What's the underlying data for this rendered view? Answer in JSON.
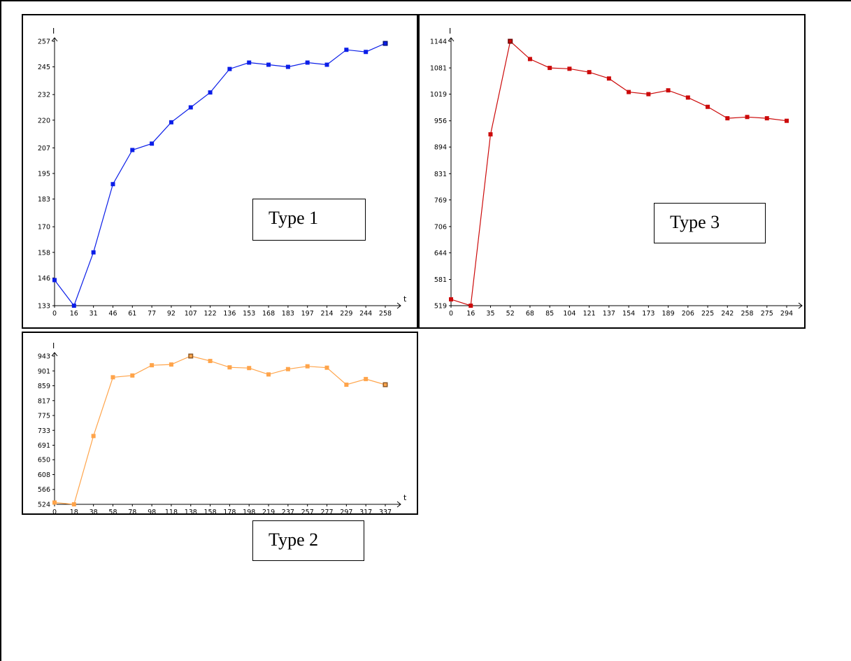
{
  "chart_data": [
    {
      "id": "type1",
      "type": "line",
      "label": "Type 1",
      "xlabel": "t",
      "ylabel": "I",
      "color": "#0b1ee8",
      "yticks": [
        133,
        146,
        158,
        170,
        183,
        195,
        207,
        220,
        232,
        245,
        257
      ],
      "xticks": [
        0,
        16,
        31,
        46,
        61,
        77,
        92,
        107,
        122,
        136,
        153,
        168,
        183,
        197,
        214,
        229,
        244,
        258
      ],
      "ylim": [
        133,
        257
      ],
      "values": [
        145,
        133,
        158,
        190,
        206,
        209,
        219,
        226,
        233,
        244,
        247,
        246,
        245,
        247,
        246,
        253,
        252,
        256
      ],
      "highlight_last": true
    },
    {
      "id": "type3",
      "type": "line",
      "label": "Type 3",
      "xlabel": "t",
      "ylabel": "I",
      "color": "#cc0a0a",
      "yticks": [
        519,
        581,
        644,
        706,
        769,
        831,
        894,
        956,
        1019,
        1081,
        1144
      ],
      "xticks": [
        0,
        16,
        35,
        52,
        68,
        85,
        104,
        121,
        137,
        154,
        173,
        189,
        206,
        225,
        242,
        258,
        275,
        294
      ],
      "ylim": [
        519,
        1144
      ],
      "values": [
        534,
        519,
        924,
        1144,
        1102,
        1081,
        1079,
        1071,
        1056,
        1024,
        1019,
        1028,
        1011,
        989,
        962,
        965,
        962,
        956
      ],
      "highlight_peak": true
    },
    {
      "id": "type2",
      "type": "line",
      "label": "Type 2",
      "xlabel": "t",
      "ylabel": "I",
      "color": "#ffa44a",
      "yticks": [
        524,
        566,
        608,
        650,
        691,
        733,
        775,
        817,
        859,
        901,
        943
      ],
      "xticks": [
        0,
        18,
        38,
        58,
        78,
        98,
        118,
        138,
        158,
        178,
        198,
        219,
        237,
        257,
        277,
        297,
        317,
        337
      ],
      "ylim": [
        524,
        943
      ],
      "values": [
        529,
        524,
        717,
        883,
        888,
        917,
        919,
        943,
        929,
        911,
        909,
        891,
        906,
        914,
        910,
        862,
        878,
        862
      ],
      "highlight_peak": true,
      "highlight_last": true
    }
  ]
}
